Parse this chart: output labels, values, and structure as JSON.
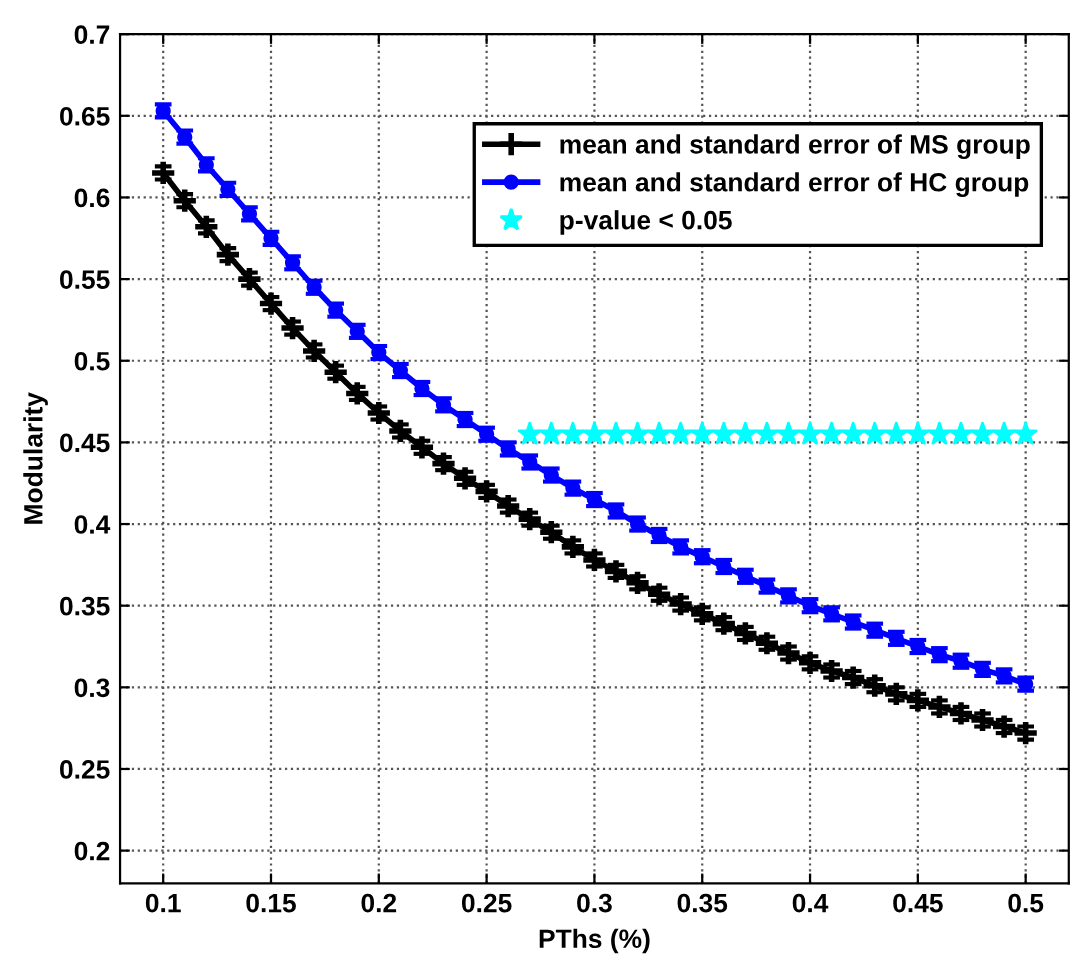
{
  "chart_data": {
    "type": "line",
    "xlabel": "PThs (%)",
    "ylabel": "Modularity",
    "xlim": [
      0.08,
      0.52
    ],
    "xticks": [
      0.1,
      0.15,
      0.2,
      0.25,
      0.3,
      0.35,
      0.4,
      0.45,
      0.5
    ],
    "ylim": [
      0.18,
      0.7
    ],
    "yticks": [
      0.2,
      0.25,
      0.3,
      0.35,
      0.4,
      0.45,
      0.5,
      0.55,
      0.6,
      0.65,
      0.7
    ],
    "grid": true,
    "legend": "top right",
    "line_style": "solid",
    "series": [
      {
        "name": "mean and standard error of MS group",
        "color": "#000000",
        "marker": "cross",
        "x": [
          0.1,
          0.11,
          0.12,
          0.13,
          0.14,
          0.15,
          0.16,
          0.17,
          0.18,
          0.19,
          0.2,
          0.21,
          0.22,
          0.23,
          0.24,
          0.25,
          0.26,
          0.27,
          0.28,
          0.29,
          0.3,
          0.31,
          0.32,
          0.33,
          0.34,
          0.35,
          0.36,
          0.37,
          0.38,
          0.39,
          0.4,
          0.41,
          0.42,
          0.43,
          0.44,
          0.45,
          0.46,
          0.47,
          0.48,
          0.49,
          0.5
        ],
        "values": [
          0.615,
          0.598,
          0.582,
          0.565,
          0.55,
          0.535,
          0.52,
          0.506,
          0.493,
          0.48,
          0.468,
          0.457,
          0.447,
          0.437,
          0.428,
          0.42,
          0.411,
          0.403,
          0.395,
          0.386,
          0.378,
          0.371,
          0.364,
          0.357,
          0.351,
          0.345,
          0.339,
          0.333,
          0.327,
          0.321,
          0.315,
          0.31,
          0.306,
          0.301,
          0.296,
          0.292,
          0.288,
          0.284,
          0.28,
          0.276,
          0.272
        ],
        "errors": [
          0.004,
          0.004,
          0.004,
          0.004,
          0.004,
          0.004,
          0.004,
          0.004,
          0.004,
          0.004,
          0.004,
          0.004,
          0.004,
          0.004,
          0.004,
          0.004,
          0.004,
          0.004,
          0.004,
          0.004,
          0.004,
          0.004,
          0.004,
          0.004,
          0.004,
          0.004,
          0.004,
          0.004,
          0.004,
          0.004,
          0.004,
          0.004,
          0.004,
          0.004,
          0.004,
          0.004,
          0.004,
          0.004,
          0.004,
          0.004,
          0.004
        ]
      },
      {
        "name": "mean and standard error of HC group",
        "color": "#0000ff",
        "marker": "circle",
        "x": [
          0.1,
          0.11,
          0.12,
          0.13,
          0.14,
          0.15,
          0.16,
          0.17,
          0.18,
          0.19,
          0.2,
          0.21,
          0.22,
          0.23,
          0.24,
          0.25,
          0.26,
          0.27,
          0.28,
          0.29,
          0.3,
          0.31,
          0.32,
          0.33,
          0.34,
          0.35,
          0.36,
          0.37,
          0.38,
          0.39,
          0.4,
          0.41,
          0.42,
          0.43,
          0.44,
          0.45,
          0.46,
          0.47,
          0.48,
          0.49,
          0.5
        ],
        "values": [
          0.653,
          0.637,
          0.62,
          0.605,
          0.59,
          0.575,
          0.56,
          0.545,
          0.531,
          0.518,
          0.505,
          0.494,
          0.483,
          0.473,
          0.464,
          0.455,
          0.446,
          0.438,
          0.43,
          0.422,
          0.415,
          0.408,
          0.4,
          0.393,
          0.386,
          0.38,
          0.374,
          0.368,
          0.362,
          0.356,
          0.35,
          0.345,
          0.34,
          0.335,
          0.33,
          0.325,
          0.32,
          0.316,
          0.311,
          0.307,
          0.302
        ],
        "errors": [
          0.004,
          0.004,
          0.004,
          0.004,
          0.004,
          0.004,
          0.004,
          0.004,
          0.004,
          0.004,
          0.004,
          0.004,
          0.004,
          0.004,
          0.004,
          0.004,
          0.004,
          0.004,
          0.004,
          0.004,
          0.004,
          0.004,
          0.004,
          0.004,
          0.004,
          0.004,
          0.004,
          0.004,
          0.004,
          0.004,
          0.004,
          0.004,
          0.004,
          0.004,
          0.004,
          0.004,
          0.004,
          0.004,
          0.004,
          0.004,
          0.004
        ]
      },
      {
        "name": "p-value < 0.05",
        "color": "#00ffff",
        "type": "scatter",
        "marker": "star",
        "x": [
          0.27,
          0.28,
          0.29,
          0.3,
          0.31,
          0.32,
          0.33,
          0.34,
          0.35,
          0.36,
          0.37,
          0.38,
          0.39,
          0.4,
          0.41,
          0.42,
          0.43,
          0.44,
          0.45,
          0.46,
          0.47,
          0.48,
          0.49,
          0.5
        ],
        "values": [
          0.455,
          0.455,
          0.455,
          0.455,
          0.455,
          0.455,
          0.455,
          0.455,
          0.455,
          0.455,
          0.455,
          0.455,
          0.455,
          0.455,
          0.455,
          0.455,
          0.455,
          0.455,
          0.455,
          0.455,
          0.455,
          0.455,
          0.455,
          0.455
        ]
      }
    ]
  }
}
